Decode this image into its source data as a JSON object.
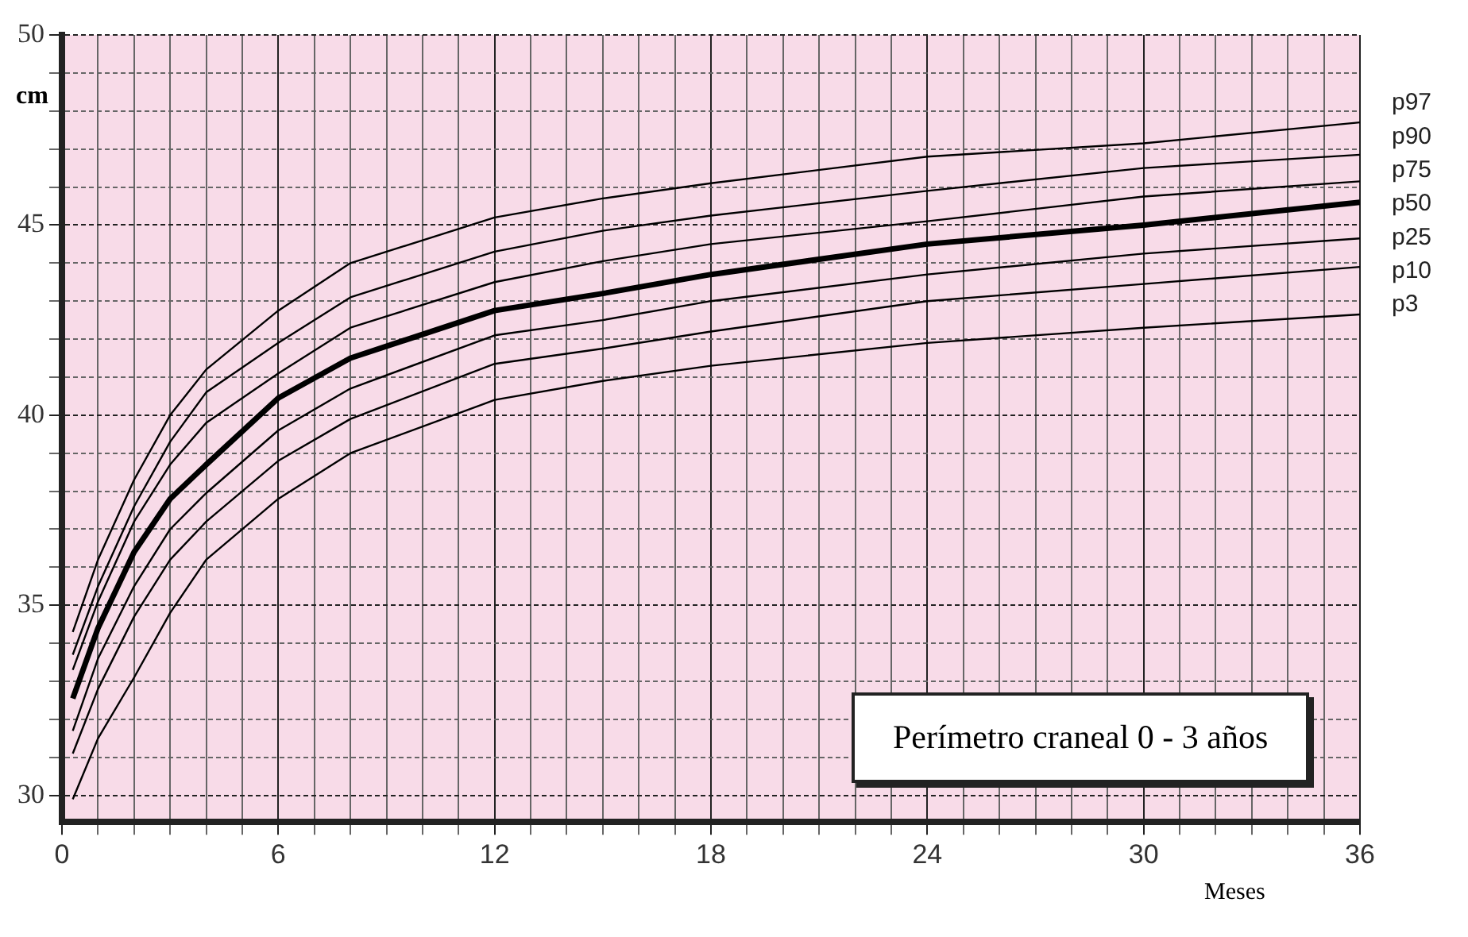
{
  "chart_data": {
    "type": "line",
    "ylabel": "cm",
    "xlabel": "Meses",
    "annotations": [
      "Perímetro craneal 0 - 3 años"
    ],
    "x": [
      0.3,
      1,
      2,
      3,
      4,
      6,
      8,
      12,
      15,
      18,
      24,
      30,
      36
    ],
    "series": [
      {
        "name": "p97",
        "color": "#000000",
        "values": [
          34.3,
          36.2,
          38.3,
          40.0,
          41.2,
          42.75,
          44.0,
          45.2,
          45.7,
          46.1,
          46.8,
          47.15,
          47.7
        ]
      },
      {
        "name": "p90",
        "color": "#000000",
        "values": [
          33.7,
          35.5,
          37.6,
          39.3,
          40.6,
          41.9,
          43.1,
          44.3,
          44.85,
          45.25,
          45.9,
          46.5,
          46.85
        ]
      },
      {
        "name": "p75",
        "color": "#000000",
        "values": [
          33.3,
          35.1,
          37.2,
          38.7,
          39.8,
          41.1,
          42.3,
          43.5,
          44.05,
          44.5,
          45.1,
          45.75,
          46.15
        ]
      },
      {
        "name": "p50",
        "color": "#000000",
        "values": [
          32.55,
          34.4,
          36.4,
          37.8,
          38.7,
          40.45,
          41.5,
          42.75,
          43.2,
          43.7,
          44.5,
          45.0,
          45.6
        ]
      },
      {
        "name": "p25",
        "color": "#000000",
        "values": [
          31.7,
          33.6,
          35.5,
          37.0,
          37.95,
          39.6,
          40.7,
          42.1,
          42.5,
          43.0,
          43.7,
          44.25,
          44.65
        ]
      },
      {
        "name": "p10",
        "color": "#000000",
        "values": [
          31.1,
          32.8,
          34.7,
          36.2,
          37.2,
          38.8,
          39.9,
          41.35,
          41.75,
          42.2,
          43.0,
          43.45,
          43.9
        ]
      },
      {
        "name": "p3",
        "color": "#000000",
        "values": [
          29.9,
          31.5,
          33.1,
          34.8,
          36.2,
          37.8,
          39.0,
          40.4,
          40.9,
          41.3,
          41.9,
          42.3,
          42.65
        ]
      }
    ],
    "xlim": [
      0,
      36
    ],
    "ylim": [
      29.3,
      50
    ],
    "xticks": [
      0,
      {
        "value": 1,
        "label": null
      },
      {
        "value": 2,
        "label": null
      },
      {
        "value": 3,
        "label": null
      },
      {
        "value": 4,
        "label": null
      },
      {
        "value": 5,
        "label": null
      },
      6,
      {
        "value": 7,
        "label": null
      },
      {
        "value": 8,
        "label": null
      },
      {
        "value": 9,
        "label": null
      },
      {
        "value": 10,
        "label": null
      },
      {
        "value": 11,
        "label": null
      },
      12,
      {
        "value": 13,
        "label": null
      },
      {
        "value": 14,
        "label": null
      },
      {
        "value": 15,
        "label": null
      },
      {
        "value": 16,
        "label": null
      },
      {
        "value": 17,
        "label": null
      },
      18,
      {
        "value": 19,
        "label": null
      },
      {
        "value": 20,
        "label": null
      },
      {
        "value": 21,
        "label": null
      },
      {
        "value": 22,
        "label": null
      },
      {
        "value": 23,
        "label": null
      },
      24,
      {
        "value": 25,
        "label": null
      },
      {
        "value": 26,
        "label": null
      },
      {
        "value": 27,
        "label": null
      },
      {
        "value": 28,
        "label": null
      },
      {
        "value": 29,
        "label": null
      },
      30,
      {
        "value": 31,
        "label": null
      },
      {
        "value": 32,
        "label": null
      },
      {
        "value": 33,
        "label": null
      },
      {
        "value": 34,
        "label": null
      },
      {
        "value": 35,
        "label": null
      },
      36
    ],
    "yticks": [
      30,
      {
        "value": 31,
        "label": null
      },
      {
        "value": 32,
        "label": null
      },
      {
        "value": 33,
        "label": null
      },
      {
        "value": 34,
        "label": null
      },
      35,
      {
        "value": 36,
        "label": null
      },
      {
        "value": 37,
        "label": null
      },
      {
        "value": 38,
        "label": null
      },
      {
        "value": 39,
        "label": null
      },
      40,
      {
        "value": 41,
        "label": null
      },
      {
        "value": 42,
        "label": null
      },
      {
        "value": 43,
        "label": null
      },
      {
        "value": 44,
        "label": null
      },
      45,
      {
        "value": 46,
        "label": null
      },
      {
        "value": 47,
        "label": null
      },
      {
        "value": 48,
        "label": null
      },
      {
        "value": 49,
        "label": null
      },
      50
    ],
    "grid": true,
    "marker": "none",
    "line_style": "solid",
    "legend": false
  }
}
